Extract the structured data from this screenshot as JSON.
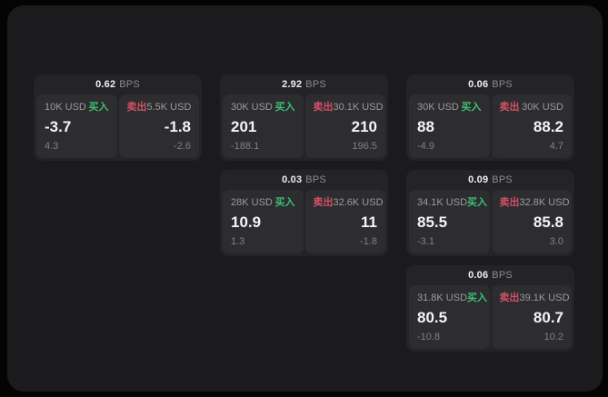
{
  "labels": {
    "buy": "买入",
    "sell": "卖出",
    "bps_suffix": "BPS"
  },
  "colors": {
    "buy_green": "#3fbf73",
    "sell_red": "#d35066",
    "panel_bg": "#1b1b1d",
    "card_bg": "#242427",
    "tile_bg": "#2d2d30"
  },
  "cards": [
    {
      "bps": "0.62",
      "buy": {
        "amount": "10K USD",
        "value": "-3.7",
        "sub": "4.3"
      },
      "sell": {
        "amount": "5.5K USD",
        "value": "-1.8",
        "sub": "-2.6"
      }
    },
    {
      "bps": "2.92",
      "buy": {
        "amount": "30K USD",
        "value": "201",
        "sub": "-188.1"
      },
      "sell": {
        "amount": "30.1K USD",
        "value": "210",
        "sub": "196.5"
      }
    },
    {
      "bps": "0.06",
      "buy": {
        "amount": "30K USD",
        "value": "88",
        "sub": "-4.9"
      },
      "sell": {
        "amount": "30K USD",
        "value": "88.2",
        "sub": "4.7"
      }
    },
    {
      "bps": "0.03",
      "buy": {
        "amount": "28K USD",
        "value": "10.9",
        "sub": "1.3"
      },
      "sell": {
        "amount": "32.6K USD",
        "value": "11",
        "sub": "-1.8"
      }
    },
    {
      "bps": "0.09",
      "buy": {
        "amount": "34.1K USD",
        "value": "85.5",
        "sub": "-3.1"
      },
      "sell": {
        "amount": "32.8K USD",
        "value": "85.8",
        "sub": "3.0"
      }
    },
    {
      "bps": "0.06",
      "buy": {
        "amount": "31.8K USD",
        "value": "80.5",
        "sub": "-10.8"
      },
      "sell": {
        "amount": "39.1K USD",
        "value": "80.7",
        "sub": "10.2"
      }
    }
  ]
}
